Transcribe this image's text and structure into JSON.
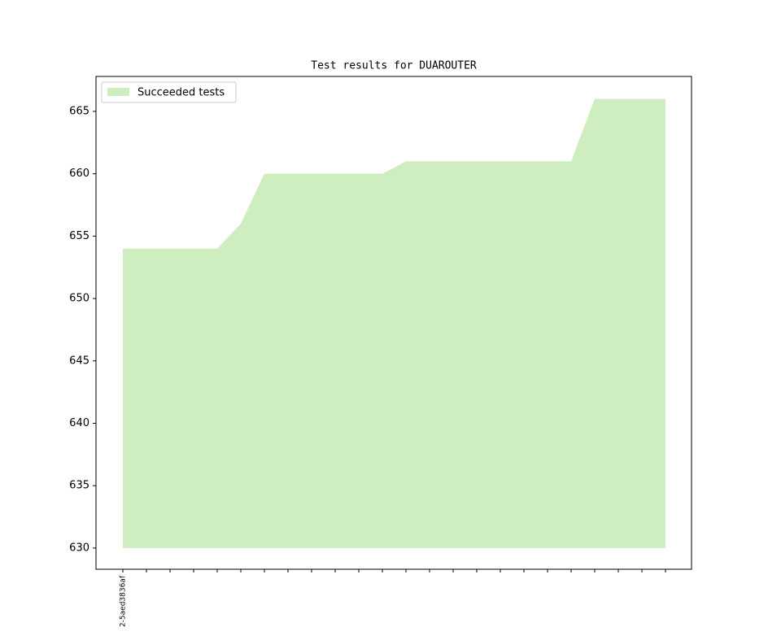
{
  "chart_data": {
    "type": "area",
    "title": "Test results for DUAROUTER",
    "categories": [
      "2-5aed3836af",
      null,
      null,
      null,
      null,
      null,
      null,
      null,
      null,
      null,
      null,
      null,
      null,
      null,
      null,
      null,
      null,
      null,
      null,
      null,
      null,
      null,
      null,
      null
    ],
    "series": [
      {
        "name": "Succeeded tests",
        "color": "#cfeec0",
        "values": [
          654,
          654,
          654,
          654,
          654,
          656,
          660,
          660,
          660,
          660,
          660,
          660,
          661,
          661,
          661,
          661,
          661,
          661,
          661,
          661,
          666,
          666,
          666,
          666
        ]
      }
    ],
    "baseline": 630,
    "ylim": [
      628.3,
      667.8
    ],
    "yticks": [
      630,
      635,
      640,
      645,
      650,
      655,
      660,
      665
    ],
    "legend": "upper left"
  }
}
